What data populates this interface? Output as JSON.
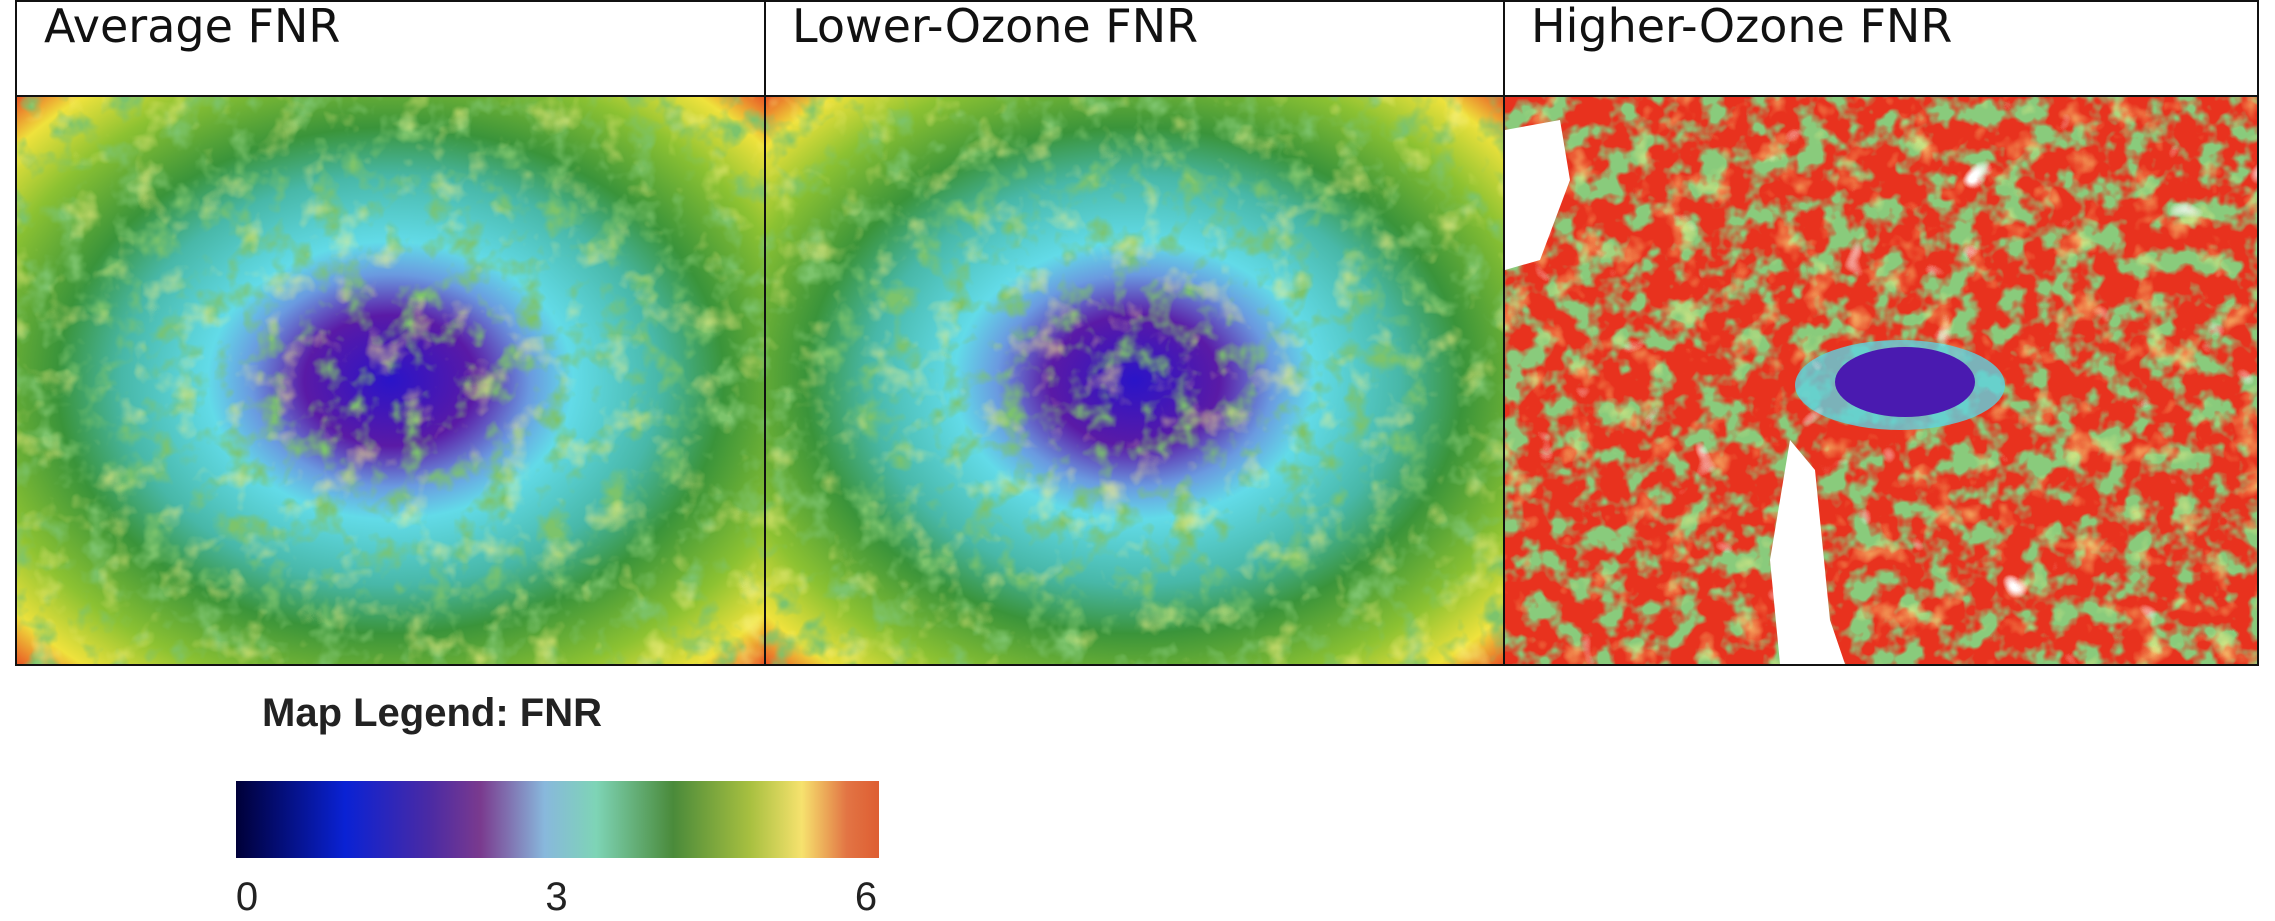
{
  "panels": [
    {
      "title": "Average FNR"
    },
    {
      "title": "Lower-Ozone FNR"
    },
    {
      "title": "Higher-Ozone FNR"
    }
  ],
  "legend": {
    "title": "Map Legend: FNR",
    "range": [
      0,
      6
    ],
    "ticks": [
      0,
      3,
      6
    ]
  }
}
